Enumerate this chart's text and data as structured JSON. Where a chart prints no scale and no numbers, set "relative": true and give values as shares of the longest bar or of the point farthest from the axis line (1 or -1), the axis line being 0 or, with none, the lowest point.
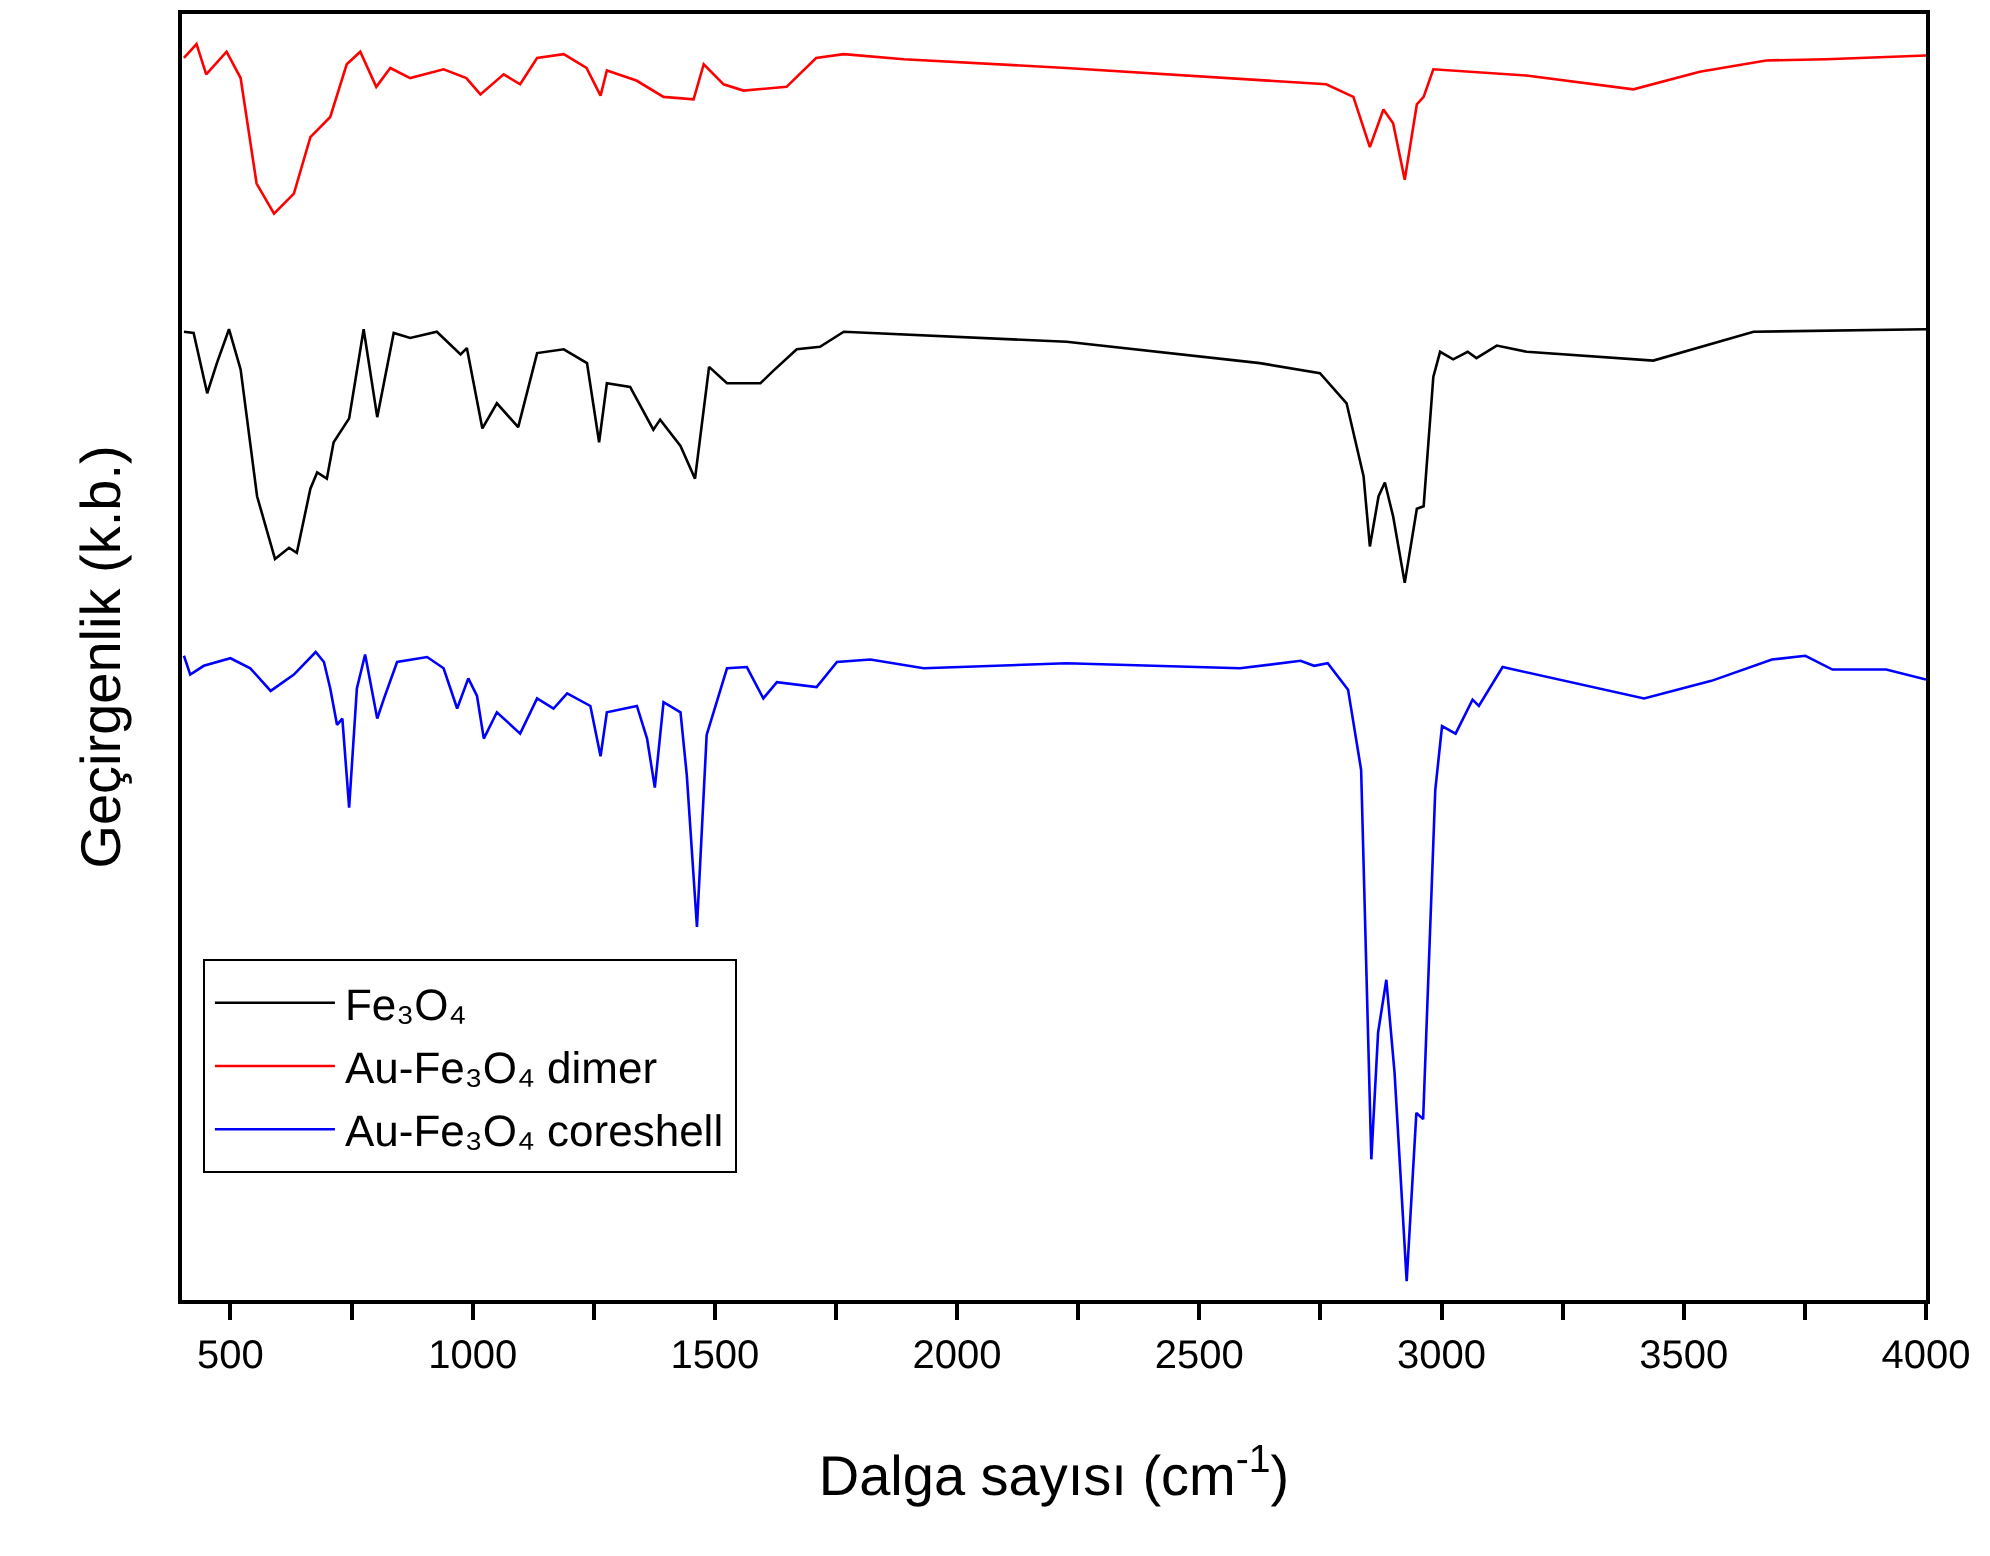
{
  "chart_data": {
    "type": "line",
    "relative": true,
    "xlabel": "Dalga sayısı (cm$^{-1}$)",
    "ylabel": "Geçirgenlik (k.b.)",
    "xlim": [
      400,
      4000
    ],
    "xticks": [
      500,
      {
        "value": 750,
        "label": null
      },
      1000,
      {
        "value": 1250,
        "label": null
      },
      1500,
      {
        "value": 1750,
        "label": null
      },
      2000,
      {
        "value": 2250,
        "label": null
      },
      2500,
      {
        "value": 2750,
        "label": null
      },
      3000,
      {
        "value": 3250,
        "label": null
      },
      3500,
      {
        "value": 3750,
        "label": null
      },
      4000
    ],
    "tick_labels": "x",
    "legend": "bottom left",
    "marker": "none",
    "line_style": "solid",
    "series": [
      {
        "name": "Fe₃O₄",
        "color": "#000000",
        "x": [
          404,
          424,
          452,
          472,
          497,
          521,
          555,
          592,
          621,
          637,
          665,
          679,
          699,
          713,
          745,
          775,
          803,
          837,
          871,
          926,
          975,
          988,
          1020,
          1050,
          1094,
          1133,
          1188,
          1236,
          1261,
          1277,
          1325,
          1373,
          1387,
          1429,
          1459,
          1488,
          1525,
          1594,
          1621,
          1669,
          1717,
          1766,
          2226,
          2625,
          2749,
          2804,
          2839,
          2852,
          2870,
          2883,
          2900,
          2924,
          2949,
          2963,
          2983,
          2997,
          3024,
          3054,
          3072,
          3114,
          3176,
          3437,
          3644,
          4000
        ],
        "values": [
          0.771,
          0.77,
          0.722,
          0.746,
          0.773,
          0.741,
          0.64,
          0.59,
          0.599,
          0.595,
          0.646,
          0.659,
          0.654,
          0.683,
          0.702,
          0.773,
          0.703,
          0.77,
          0.766,
          0.771,
          0.753,
          0.758,
          0.694,
          0.714,
          0.695,
          0.754,
          0.757,
          0.746,
          0.683,
          0.73,
          0.727,
          0.693,
          0.701,
          0.68,
          0.654,
          0.743,
          0.73,
          0.73,
          0.74,
          0.757,
          0.759,
          0.771,
          0.763,
          0.746,
          0.738,
          0.714,
          0.656,
          0.6,
          0.64,
          0.651,
          0.624,
          0.571,
          0.63,
          0.632,
          0.735,
          0.755,
          0.749,
          0.755,
          0.75,
          0.76,
          0.755,
          0.748,
          0.771,
          0.773
        ]
      },
      {
        "name": "Au-Fe₃O₄ dimer",
        "color": "#ff0000",
        "x": [
          404,
          430,
          450,
          492,
          521,
          554,
          590,
          631,
          665,
          706,
          740,
          768,
          801,
          830,
          871,
          940,
          987,
          1016,
          1064,
          1098,
          1133,
          1188,
          1235,
          1264,
          1277,
          1338,
          1394,
          1456,
          1477,
          1518,
          1559,
          1648,
          1709,
          1766,
          1890,
          2225,
          2762,
          2818,
          2852,
          2880,
          2900,
          2924,
          2949,
          2963,
          2983,
          3175,
          3396,
          3533,
          3670,
          3794,
          4000
        ],
        "values": [
          0.989,
          1.0,
          0.976,
          0.994,
          0.973,
          0.889,
          0.865,
          0.881,
          0.926,
          0.942,
          0.984,
          0.994,
          0.966,
          0.981,
          0.973,
          0.98,
          0.973,
          0.96,
          0.976,
          0.968,
          0.989,
          0.992,
          0.981,
          0.959,
          0.979,
          0.971,
          0.958,
          0.956,
          0.984,
          0.968,
          0.963,
          0.966,
          0.989,
          0.992,
          0.988,
          0.981,
          0.968,
          0.958,
          0.918,
          0.948,
          0.937,
          0.892,
          0.952,
          0.958,
          0.98,
          0.975,
          0.964,
          0.978,
          0.987,
          0.988,
          0.991
        ]
      },
      {
        "name": "Au-Fe₃O₄ coreshell",
        "color": "#0000ff",
        "x": [
          404,
          417,
          445,
          500,
          541,
          583,
          631,
          676,
          693,
          706,
          720,
          731,
          745,
          761,
          778,
          803,
          817,
          844,
          906,
          940,
          968,
          991,
          1009,
          1023,
          1050,
          1098,
          1133,
          1167,
          1195,
          1243,
          1264,
          1277,
          1339,
          1360,
          1376,
          1394,
          1429,
          1442,
          1463,
          1483,
          1525,
          1566,
          1600,
          1628,
          1710,
          1752,
          1821,
          1931,
          2226,
          2584,
          2709,
          2737,
          2765,
          2807,
          2834,
          2855,
          2869,
          2886,
          2903,
          2928,
          2948,
          2962,
          2987,
          3001,
          3029,
          3064,
          3077,
          3126,
          3418,
          3557,
          3682,
          3751,
          3807,
          3918,
          4000
        ],
        "values": [
          0.513,
          0.498,
          0.505,
          0.511,
          0.503,
          0.485,
          0.498,
          0.516,
          0.508,
          0.487,
          0.458,
          0.463,
          0.392,
          0.487,
          0.514,
          0.463,
          0.479,
          0.508,
          0.512,
          0.503,
          0.471,
          0.495,
          0.481,
          0.447,
          0.468,
          0.451,
          0.479,
          0.471,
          0.483,
          0.473,
          0.433,
          0.468,
          0.473,
          0.447,
          0.408,
          0.476,
          0.468,
          0.418,
          0.297,
          0.45,
          0.503,
          0.504,
          0.479,
          0.492,
          0.488,
          0.508,
          0.51,
          0.503,
          0.507,
          0.503,
          0.509,
          0.505,
          0.507,
          0.486,
          0.422,
          0.112,
          0.213,
          0.255,
          0.181,
          0.015,
          0.149,
          0.144,
          0.406,
          0.457,
          0.451,
          0.478,
          0.473,
          0.504,
          0.479,
          0.493,
          0.51,
          0.513,
          0.502,
          0.502,
          0.494
        ]
      }
    ]
  }
}
